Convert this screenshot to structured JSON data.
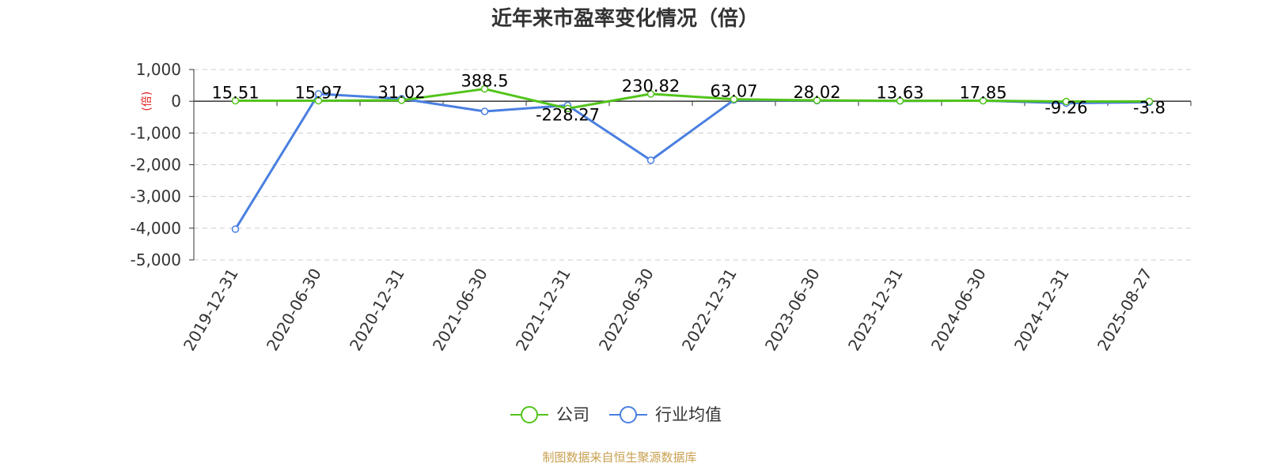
{
  "chart_data": {
    "type": "line",
    "title": "近年来市盈率变化情况（倍）",
    "ylabel": "(倍)",
    "ylim": [
      -5000,
      1000
    ],
    "yticks": [
      1000,
      0,
      -1000,
      -2000,
      -3000,
      -4000,
      -5000
    ],
    "ytick_labels": [
      "1,000",
      "0",
      "-1,000",
      "-2,000",
      "-3,000",
      "-4,000",
      "-5,000"
    ],
    "categories": [
      "2019-12-31",
      "2020-06-30",
      "2020-12-31",
      "2021-06-30",
      "2021-12-31",
      "2022-06-30",
      "2022-12-31",
      "2023-06-30",
      "2023-12-31",
      "2024-06-30",
      "2024-12-31",
      "2025-08-27"
    ],
    "series": [
      {
        "name": "公司",
        "color": "#52c41a",
        "values": [
          15.51,
          15.97,
          31.02,
          388.5,
          -228.27,
          230.82,
          63.07,
          28.02,
          13.63,
          17.85,
          -9.26,
          -3.8
        ],
        "labels": [
          "15.51",
          "15.97",
          "31.02",
          "388.5",
          "-228.27",
          "230.82",
          "63.07",
          "28.02",
          "13.63",
          "17.85",
          "-9.26",
          "-3.8"
        ]
      },
      {
        "name": "行业均值",
        "color": "#4a7fe0",
        "values": [
          -4030,
          230,
          80,
          -320,
          -130,
          -1860,
          40,
          20,
          10,
          20,
          -60,
          -30
        ]
      }
    ],
    "grid": true,
    "legend": "bottom-center",
    "source": "制图数据来自恒生聚源数据库"
  }
}
